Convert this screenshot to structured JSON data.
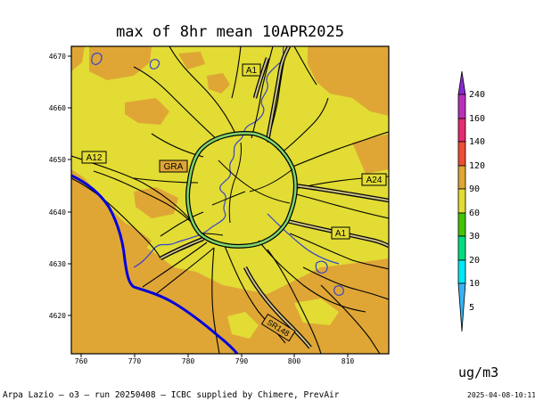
{
  "title": "max of 8hr mean 10APR2025",
  "units": "ug/m3",
  "footer": "Arpa Lazio — o3 — run 20250408 — ICBC supplied by Chimere, PrevAir",
  "timestamp": "2025-04-08-10:11",
  "axes": {
    "x_ticks": [
      "760",
      "770",
      "780",
      "790",
      "800",
      "810"
    ],
    "y_ticks": [
      "4670",
      "4660",
      "4650",
      "4640",
      "4630",
      "4620"
    ]
  },
  "road_labels": {
    "a1_north": "A1",
    "a12": "A12",
    "gra": "GRA",
    "a24": "A24",
    "a1_south": "A1",
    "sr148": "SR148"
  },
  "colorbar": {
    "labels": [
      "5",
      "10",
      "20",
      "30",
      "60",
      "90",
      "120",
      "140",
      "160",
      "240"
    ],
    "colors": [
      "#38b4f4",
      "#00e8f4",
      "#00dd80",
      "#44c400",
      "#e2dc34",
      "#dfa636",
      "#ee4e36",
      "#e52b72",
      "#b832b8",
      "#8a2ad0"
    ]
  },
  "map_colors": {
    "dominant_fill": "#e2dc34",
    "secondary_fill": "#dfa636",
    "ring_road": "#7ed66c",
    "coastline": "#0000dd",
    "rivers": "#3344cc"
  }
}
